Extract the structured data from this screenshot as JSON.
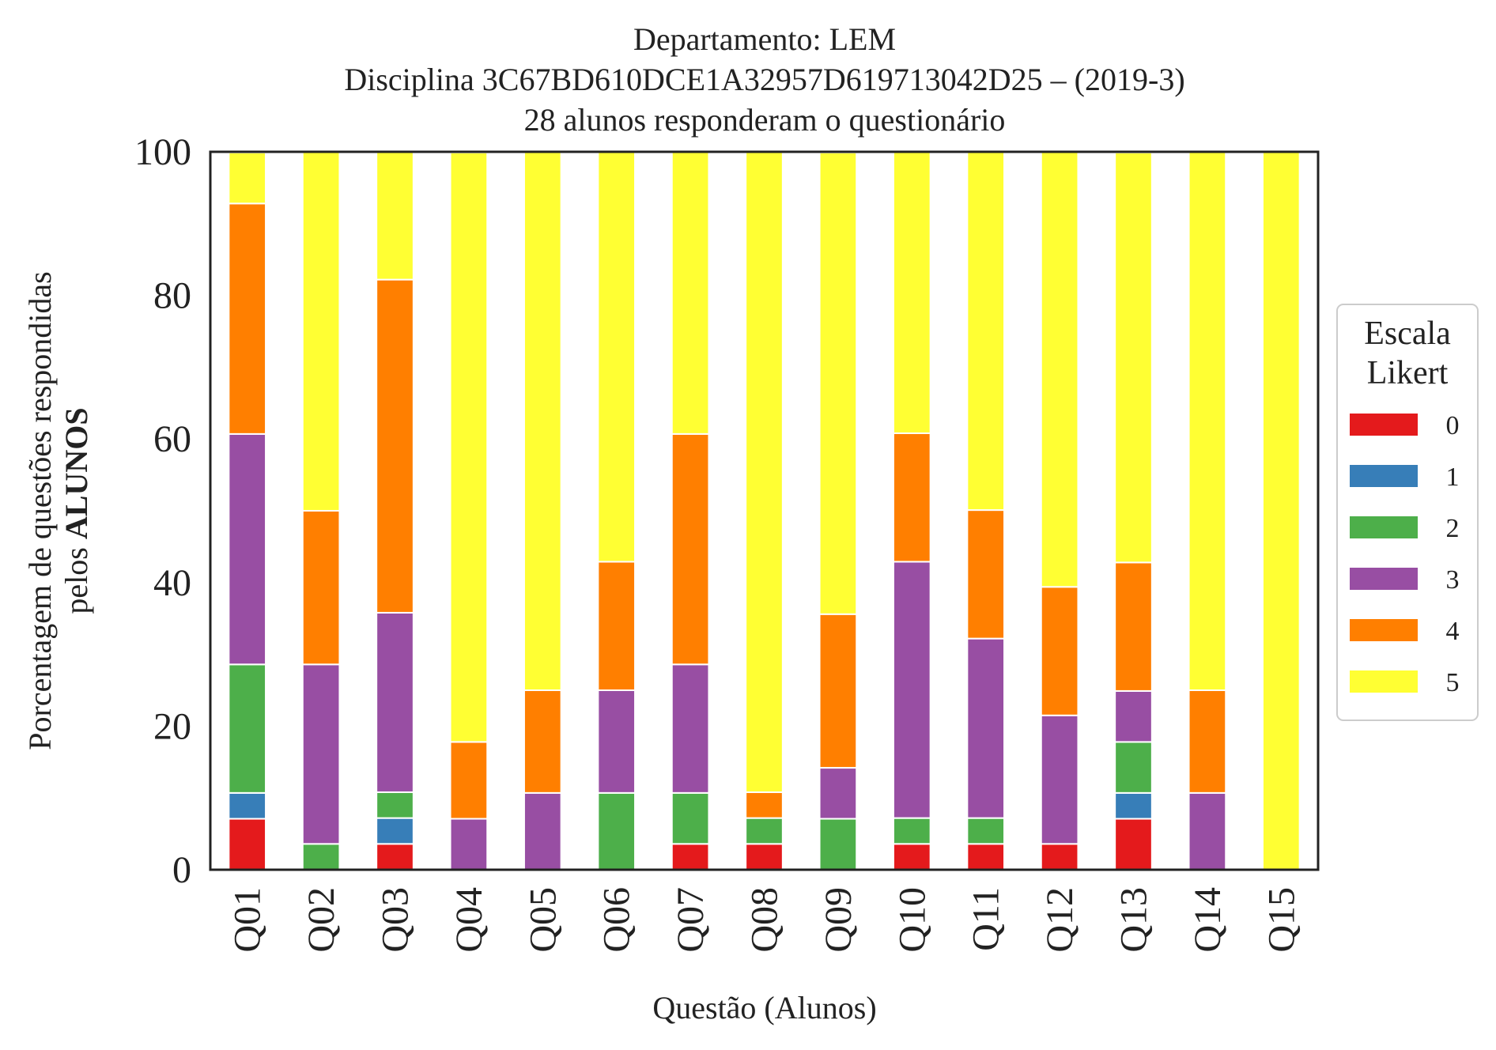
{
  "chart_data": {
    "type": "bar",
    "stacked": true,
    "title_lines": [
      "Departamento: LEM",
      "Disciplina 3C67BD610DCE1A32957D619713042D25 – (2019-3)",
      "28 alunos responderam o questionário"
    ],
    "xlabel": "Questão (Alunos)",
    "ylabel_lines": [
      "Porcentagem de questões respondidas",
      "pelos ",
      "ALUNOS"
    ],
    "ylim": [
      0,
      100
    ],
    "yticks": [
      "0",
      "20",
      "40",
      "60",
      "80",
      "100"
    ],
    "categories": [
      "Q01",
      "Q02",
      "Q03",
      "Q04",
      "Q05",
      "Q06",
      "Q07",
      "Q08",
      "Q09",
      "Q10",
      "Q11",
      "Q12",
      "Q13",
      "Q14",
      "Q15"
    ],
    "legend": {
      "title_lines": [
        "Escala",
        "Likert"
      ],
      "position": "right"
    },
    "series": [
      {
        "name": "0",
        "color": "#e41a1c",
        "values": [
          7.1,
          0,
          3.6,
          0,
          0,
          0,
          3.6,
          3.6,
          0,
          3.6,
          3.6,
          3.6,
          7.1,
          0,
          0
        ]
      },
      {
        "name": "1",
        "color": "#377eb8",
        "values": [
          3.6,
          0,
          3.6,
          0,
          0,
          0,
          0,
          0,
          0,
          0,
          0,
          0,
          3.6,
          0,
          0
        ]
      },
      {
        "name": "2",
        "color": "#4daf4a",
        "values": [
          17.9,
          3.6,
          3.6,
          0,
          0,
          10.7,
          7.1,
          3.6,
          7.1,
          3.6,
          3.6,
          0,
          7.1,
          0,
          0
        ]
      },
      {
        "name": "3",
        "color": "#984ea3",
        "values": [
          32.1,
          25.0,
          25.0,
          7.1,
          10.7,
          14.3,
          17.9,
          0,
          7.1,
          35.7,
          25.0,
          17.9,
          7.1,
          10.7,
          0
        ]
      },
      {
        "name": "4",
        "color": "#ff7f00",
        "values": [
          32.1,
          21.4,
          46.4,
          10.7,
          14.3,
          17.9,
          32.1,
          3.6,
          21.4,
          17.9,
          17.9,
          17.9,
          17.9,
          14.3,
          0
        ]
      },
      {
        "name": "5",
        "color": "#ffff33",
        "values": [
          7.1,
          50.0,
          17.9,
          82.1,
          75.0,
          57.1,
          39.3,
          89.3,
          64.3,
          39.3,
          50.0,
          60.7,
          57.1,
          75.0,
          100
        ]
      }
    ],
    "grid": false
  }
}
